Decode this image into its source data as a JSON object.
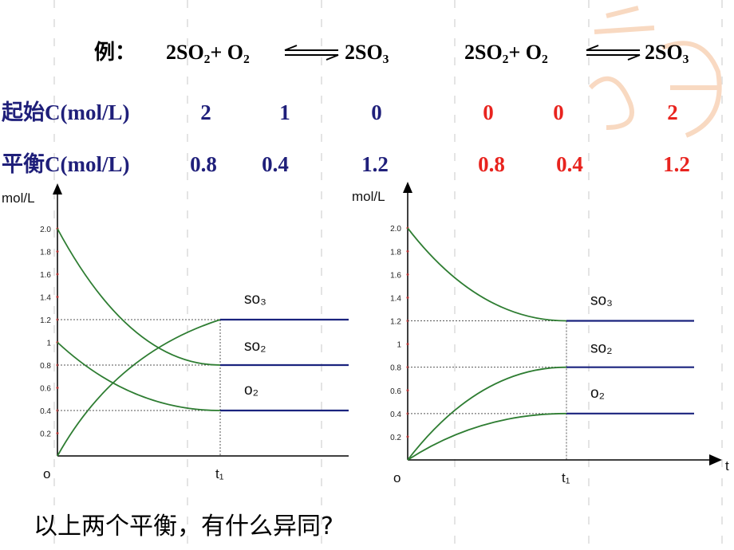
{
  "header": {
    "example": "例：",
    "equations": [
      {
        "reactants": "2SO₂+ O₂",
        "product": "2SO₃"
      },
      {
        "reactants": "2SO₂+ O₂",
        "product": "2SO₃"
      }
    ]
  },
  "table": {
    "row_labels": [
      "起始C(mol/L)",
      "平衡C(mol/L)"
    ],
    "left": [
      [
        "2",
        "1",
        "0"
      ],
      [
        "0.8",
        "0.4",
        "1.2"
      ]
    ],
    "right": [
      [
        "0",
        "0",
        "2"
      ],
      [
        "0.8",
        "0.4",
        "1.2"
      ]
    ]
  },
  "chart_data": [
    {
      "type": "line",
      "y_label": "mol/L",
      "categories": [
        "o",
        "t₁",
        null
      ],
      "ylim": [
        0,
        2.4
      ],
      "yticks": [
        0.2,
        0.4,
        0.6,
        0.8,
        1,
        1.2,
        1.4,
        1.6,
        1.8,
        {
          "value": 2,
          "label": "2.0"
        }
      ],
      "series": [
        {
          "name": "so₃",
          "color": "#1a237e",
          "values": [
            0,
            1.2,
            1.2
          ]
        },
        {
          "name": "so₂",
          "color": "#1a237e",
          "values": [
            2,
            0.8,
            0.8
          ]
        },
        {
          "name": "o₂",
          "color": "#1a237e",
          "values": [
            1,
            0.4,
            0.4
          ]
        }
      ]
    },
    {
      "type": "line",
      "y_label": "mol/L",
      "x_label": "t",
      "categories": [
        "o",
        "t₁",
        null
      ],
      "ylim": [
        0,
        2.4
      ],
      "yticks": [
        0.2,
        0.4,
        0.6,
        0.8,
        1,
        1.2,
        1.4,
        1.6,
        1.8,
        {
          "value": 2,
          "label": "2.0"
        }
      ],
      "series": [
        {
          "name": "so₃",
          "color": "#1a237e",
          "values": [
            2,
            1.2,
            1.2
          ]
        },
        {
          "name": "so₂",
          "color": "#1a237e",
          "values": [
            0,
            0.8,
            0.8
          ]
        },
        {
          "name": "o₂",
          "color": "#1a237e",
          "values": [
            0,
            0.4,
            0.4
          ]
        }
      ]
    }
  ],
  "question": "以上两个平衡，有什么异同?"
}
